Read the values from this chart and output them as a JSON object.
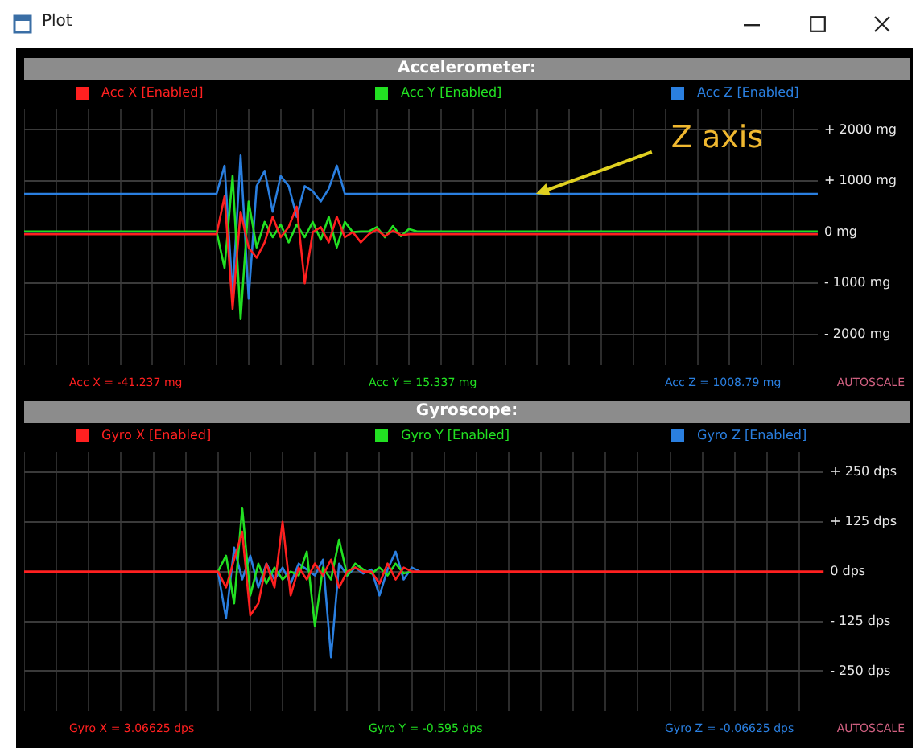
{
  "chart_data": [
    {
      "type": "line",
      "title": "Accelerometer:",
      "categories": [
        null,
        null,
        null,
        null,
        null,
        null,
        null,
        null,
        null,
        null,
        null,
        null,
        null,
        null,
        null,
        null,
        null,
        null,
        null,
        null,
        null,
        null,
        null,
        null,
        null,
        null,
        null,
        null,
        null,
        null,
        null,
        null,
        null,
        null,
        null,
        null,
        null,
        null,
        null,
        null,
        null,
        null,
        null,
        null,
        null,
        null,
        null,
        null,
        null,
        null,
        null,
        null,
        null,
        null,
        null,
        null,
        null,
        null,
        null,
        null,
        null,
        null,
        null,
        null,
        null,
        null,
        null,
        null,
        null,
        null,
        null,
        null,
        null,
        null,
        null,
        null,
        null,
        null,
        null,
        null,
        null,
        null,
        null,
        null,
        null,
        null,
        null,
        null,
        null,
        null,
        null,
        null,
        null,
        null,
        null,
        null,
        null,
        null,
        null,
        null
      ],
      "series": [
        {
          "name": "Acc X [Enabled]",
          "color": "#ff2020",
          "values": [
            -40,
            -40,
            -40,
            -40,
            -40,
            -40,
            -40,
            -40,
            -40,
            -40,
            -40,
            -40,
            -40,
            -40,
            -40,
            -40,
            -40,
            -40,
            -40,
            -40,
            -40,
            -40,
            -40,
            -40,
            -40,
            700,
            -1500,
            400,
            -300,
            -500,
            -200,
            300,
            -100,
            100,
            500,
            -1000,
            0,
            100,
            -200,
            300,
            -100,
            0,
            -200,
            -40,
            50,
            -80,
            30,
            -60,
            -40,
            -40,
            -40,
            -40,
            -40,
            -40,
            -40,
            -40,
            -40,
            -40,
            -40,
            -40,
            -40,
            -40,
            -40,
            -40,
            -40,
            -40,
            -40,
            -40,
            -40,
            -40,
            -40,
            -40,
            -40,
            -40,
            -40,
            -40,
            -40,
            -40,
            -40,
            -40,
            -40,
            -40,
            -40,
            -40,
            -40,
            -40,
            -40,
            -40,
            -40,
            -40,
            -40,
            -40,
            -40,
            -40,
            -40,
            -40,
            -40,
            -40,
            -40,
            -40
          ]
        },
        {
          "name": "Acc Y [Enabled]",
          "color": "#22e022",
          "values": [
            15,
            15,
            15,
            15,
            15,
            15,
            15,
            15,
            15,
            15,
            15,
            15,
            15,
            15,
            15,
            15,
            15,
            15,
            15,
            15,
            15,
            15,
            15,
            15,
            15,
            -700,
            1100,
            -1700,
            600,
            -300,
            200,
            -100,
            150,
            -200,
            150,
            -100,
            200,
            -150,
            300,
            -300,
            200,
            0,
            15,
            15,
            100,
            -100,
            120,
            -80,
            60,
            15,
            15,
            15,
            15,
            15,
            15,
            15,
            15,
            15,
            15,
            15,
            15,
            15,
            15,
            15,
            15,
            15,
            15,
            15,
            15,
            15,
            15,
            15,
            15,
            15,
            15,
            15,
            15,
            15,
            15,
            15,
            15,
            15,
            15,
            15,
            15,
            15,
            15,
            15,
            15,
            15,
            15,
            15,
            15,
            15,
            15,
            15,
            15,
            15,
            15,
            15
          ]
        },
        {
          "name": "Acc Z [Enabled]",
          "color": "#2a7fe0",
          "values": [
            750,
            750,
            750,
            750,
            750,
            750,
            750,
            750,
            750,
            750,
            750,
            750,
            750,
            750,
            750,
            750,
            750,
            750,
            750,
            750,
            750,
            750,
            750,
            750,
            750,
            1300,
            -1200,
            1500,
            -1300,
            900,
            1200,
            400,
            1100,
            900,
            300,
            900,
            800,
            600,
            850,
            1300,
            750,
            750,
            750,
            750,
            750,
            750,
            750,
            750,
            750,
            750,
            750,
            750,
            750,
            750,
            750,
            750,
            750,
            750,
            750,
            750,
            750,
            750,
            750,
            750,
            750,
            750,
            750,
            750,
            750,
            750,
            750,
            750,
            750,
            750,
            750,
            750,
            750,
            750,
            750,
            750,
            750,
            750,
            750,
            750,
            750,
            750,
            750,
            750,
            750,
            750,
            750,
            750,
            750,
            750,
            750,
            750,
            750,
            750,
            750,
            750
          ]
        }
      ],
      "ylim": [
        -2600,
        2400
      ],
      "yticks": [
        {
          "value": 2000,
          "label": "+ 2000 mg"
        },
        {
          "value": 1000,
          "label": "+ 1000 mg"
        },
        {
          "value": 0,
          "label": "0 mg"
        },
        {
          "value": -1000,
          "label": "- 1000 mg"
        },
        {
          "value": -2000,
          "label": "- 2000 mg"
        }
      ],
      "tick_labels": "y",
      "grid": true,
      "legend": "top",
      "annotations": [
        "Plot",
        "Acc X = -41.237 mg",
        "Acc Y = 15.337 mg",
        "Acc Z = 1008.79 mg",
        "AUTOSCALE",
        {
          "text": "Z axis",
          "y": 750
        }
      ]
    },
    {
      "type": "line",
      "title": "Gyroscope:",
      "categories": [
        null,
        null,
        null,
        null,
        null,
        null,
        null,
        null,
        null,
        null,
        null,
        null,
        null,
        null,
        null,
        null,
        null,
        null,
        null,
        null,
        null,
        null,
        null,
        null,
        null,
        null,
        null,
        null,
        null,
        null,
        null,
        null,
        null,
        null,
        null,
        null,
        null,
        null,
        null,
        null,
        null,
        null,
        null,
        null,
        null,
        null,
        null,
        null,
        null,
        null,
        null,
        null,
        null,
        null,
        null,
        null,
        null,
        null,
        null,
        null,
        null,
        null,
        null,
        null,
        null,
        null,
        null,
        null,
        null,
        null,
        null,
        null,
        null,
        null,
        null,
        null,
        null,
        null,
        null,
        null,
        null,
        null,
        null,
        null,
        null,
        null,
        null,
        null,
        null,
        null,
        null,
        null,
        null,
        null,
        null,
        null,
        null,
        null,
        null,
        null
      ],
      "series": [
        {
          "name": "Gyro X [Enabled]",
          "color": "#ff2020",
          "values": [
            0,
            0,
            0,
            0,
            0,
            0,
            0,
            0,
            0,
            0,
            0,
            0,
            0,
            0,
            0,
            0,
            0,
            0,
            0,
            0,
            0,
            0,
            0,
            0,
            0,
            -40,
            30,
            100,
            -110,
            -80,
            20,
            -40,
            125,
            -60,
            10,
            -20,
            20,
            -10,
            30,
            -40,
            0,
            10,
            0,
            0,
            -30,
            20,
            -20,
            10,
            0,
            0,
            0,
            0,
            0,
            0,
            0,
            0,
            0,
            0,
            0,
            0,
            0,
            0,
            0,
            0,
            0,
            0,
            0,
            0,
            0,
            0,
            0,
            0,
            0,
            0,
            0,
            0,
            0,
            0,
            0,
            0,
            0,
            0,
            0,
            0,
            0,
            0,
            0,
            0,
            0,
            0,
            0,
            0,
            0,
            0,
            0,
            0,
            0,
            0,
            0,
            0
          ]
        },
        {
          "name": "Gyro Y [Enabled]",
          "color": "#22e022",
          "values": [
            null,
            null,
            null,
            null,
            null,
            null,
            null,
            null,
            null,
            null,
            null,
            null,
            null,
            null,
            null,
            null,
            null,
            null,
            null,
            null,
            null,
            null,
            null,
            null,
            0,
            40,
            -80,
            160,
            -60,
            20,
            -30,
            10,
            -20,
            0,
            -10,
            50,
            -137,
            10,
            -20,
            80,
            -10,
            20,
            5,
            -5,
            10,
            -10,
            20,
            -5,
            0,
            null,
            null,
            null,
            null,
            null,
            null,
            null,
            null,
            null,
            null,
            null,
            null,
            null,
            null,
            null,
            null,
            null,
            null,
            null,
            null,
            null,
            null,
            null,
            null,
            null,
            null,
            null,
            null,
            null,
            null,
            null,
            null,
            null,
            null,
            null,
            null,
            null,
            null,
            null,
            null,
            null,
            null,
            null,
            null,
            null,
            null,
            null,
            null,
            null,
            null,
            null
          ]
        },
        {
          "name": "Gyro Z [Enabled]",
          "color": "#2a7fe0",
          "values": [
            null,
            null,
            null,
            null,
            null,
            null,
            null,
            null,
            null,
            null,
            null,
            null,
            null,
            null,
            null,
            null,
            null,
            null,
            null,
            null,
            null,
            null,
            null,
            null,
            0,
            -117,
            60,
            -20,
            40,
            -40,
            20,
            -20,
            10,
            -30,
            20,
            5,
            -10,
            30,
            -215,
            20,
            -10,
            10,
            -5,
            5,
            -60,
            5,
            50,
            -20,
            10,
            0,
            null,
            null,
            null,
            null,
            null,
            null,
            null,
            null,
            null,
            null,
            null,
            null,
            null,
            null,
            null,
            null,
            null,
            null,
            null,
            null,
            null,
            null,
            null,
            null,
            null,
            null,
            null,
            null,
            null,
            null,
            null,
            null,
            null,
            null,
            null,
            null,
            null,
            null,
            null,
            null,
            null,
            null,
            null,
            null,
            null,
            null,
            null,
            null,
            null,
            null
          ]
        }
      ],
      "ylim": [
        -350,
        300
      ],
      "yticks": [
        {
          "value": 250,
          "label": "+ 250 dps"
        },
        {
          "value": 125,
          "label": "+ 125 dps"
        },
        {
          "value": 0,
          "label": "0 dps"
        },
        {
          "value": -125,
          "label": "- 125 dps"
        },
        {
          "value": -250,
          "label": "- 250 dps"
        }
      ],
      "tick_labels": "y",
      "grid": true,
      "legend": "top",
      "annotations": [
        "Gyro X = 3.06625 dps",
        "Gyro Y = -0.595 dps",
        "Gyro Z = -0.06625 dps",
        "AUTOSCALE"
      ]
    }
  ]
}
